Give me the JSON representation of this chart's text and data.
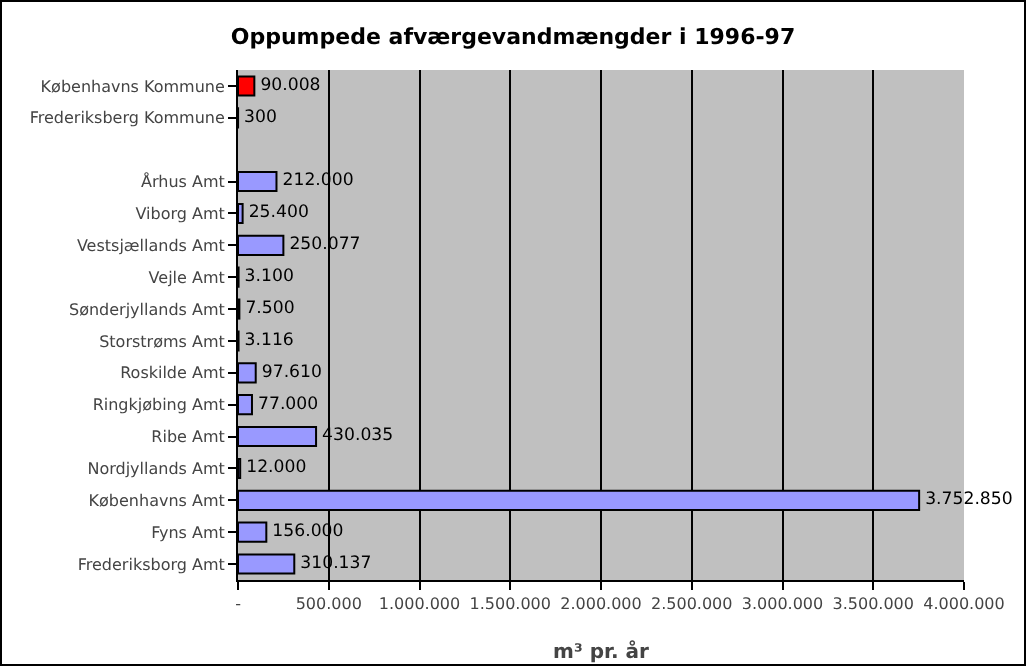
{
  "chart_data": {
    "type": "bar",
    "orientation": "horizontal",
    "title": "Oppumpede afværgevandmængder i 1996-97",
    "xlabel": "m³ pr. år",
    "categories": [
      "Københavns Kommune",
      "Frederiksberg Kommune",
      null,
      "Århus Amt",
      "Viborg Amt",
      "Vestsjællands Amt",
      "Vejle Amt",
      "Sønderjyllands Amt",
      "Storstrøms Amt",
      "Roskilde Amt",
      "Ringkjøbing Amt",
      "Ribe Amt",
      "Nordjyllands Amt",
      "Københavns Amt",
      "Fyns Amt",
      "Frederiksborg Amt"
    ],
    "values": [
      90008,
      300,
      null,
      212000,
      25400,
      250077,
      3100,
      7500,
      3116,
      97610,
      77000,
      430035,
      12000,
      3752850,
      156000,
      310137
    ],
    "value_labels": [
      "90.008",
      "300",
      null,
      "212.000",
      "25.400",
      "250.077",
      "3.100",
      "7.500",
      "3.116",
      "97.610",
      "77.000",
      "430.035",
      "12.000",
      "3.752.850",
      "156.000",
      "310.137"
    ],
    "colors": [
      "#ff0000",
      "#9999ff",
      "#9999ff",
      "#9999ff",
      "#9999ff",
      "#9999ff",
      "#9999ff",
      "#9999ff",
      "#9999ff",
      "#9999ff",
      "#9999ff",
      "#9999ff",
      "#9999ff",
      "#9999ff",
      "#9999ff",
      "#9999ff"
    ],
    "xlim": [
      0,
      4000000
    ],
    "xticks": [
      {
        "value": 0,
        "label": "-"
      },
      {
        "value": 500000,
        "label": "500.000"
      },
      {
        "value": 1000000,
        "label": "1.000.000"
      },
      {
        "value": 1500000,
        "label": "1.500.000"
      },
      {
        "value": 2000000,
        "label": "2.000.000"
      },
      {
        "value": 2500000,
        "label": "2.500.000"
      },
      {
        "value": 3000000,
        "label": "3.000.000"
      },
      {
        "value": 3500000,
        "label": "3.500.000"
      },
      {
        "value": 4000000,
        "label": "4.000.000"
      }
    ],
    "grid": "x"
  }
}
